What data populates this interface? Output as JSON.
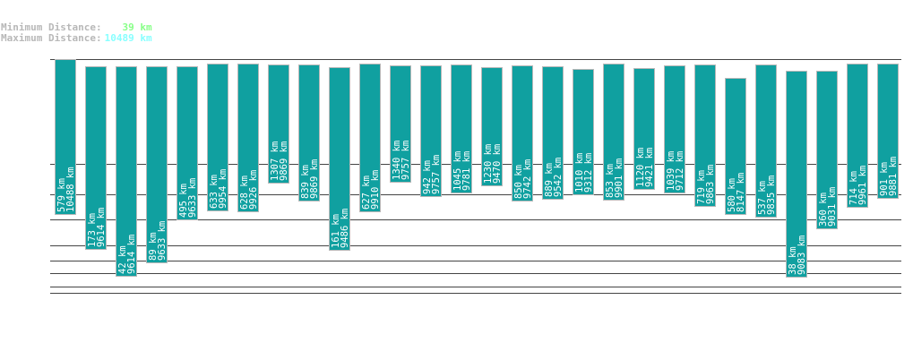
{
  "header": {
    "min_label": "Minimum Distance:",
    "min_value": "39 km",
    "max_label": "Maximum Distance:",
    "max_value": "10489 km",
    "min_color": "#88ff88",
    "max_color": "#88ffff"
  },
  "chart_data": {
    "type": "bar",
    "subtype": "floating-range",
    "unit": "km",
    "bar_color": "#10a0a0",
    "bar_border": "#b8b8b8",
    "grid": true,
    "series": [
      {
        "min": 579,
        "max": 10488
      },
      {
        "min": 173,
        "max": 9614
      },
      {
        "min": 42,
        "max": 9614
      },
      {
        "min": 89,
        "max": 9633
      },
      {
        "min": 495,
        "max": 9633
      },
      {
        "min": 633,
        "max": 9954
      },
      {
        "min": 628,
        "max": 9926
      },
      {
        "min": 1307,
        "max": 9869
      },
      {
        "min": 839,
        "max": 9869
      },
      {
        "min": 161,
        "max": 9486
      },
      {
        "min": 627,
        "max": 9910
      },
      {
        "min": 1340,
        "max": 9757
      },
      {
        "min": 942,
        "max": 9757
      },
      {
        "min": 1045,
        "max": 9781
      },
      {
        "min": 1230,
        "max": 9470
      },
      {
        "min": 850,
        "max": 9742
      },
      {
        "min": 889,
        "max": 9542
      },
      {
        "min": 1010,
        "max": 9312
      },
      {
        "min": 853,
        "max": 9901
      },
      {
        "min": 1120,
        "max": 9421
      },
      {
        "min": 1039,
        "max": 9712
      },
      {
        "min": 719,
        "max": 9863
      },
      {
        "min": 580,
        "max": 8147
      },
      {
        "min": 537,
        "max": 9835
      },
      {
        "min": 38,
        "max": 9083
      },
      {
        "min": 360,
        "max": 9031
      },
      {
        "min": 714,
        "max": 9961
      },
      {
        "min": 901,
        "max": 9881
      }
    ]
  }
}
